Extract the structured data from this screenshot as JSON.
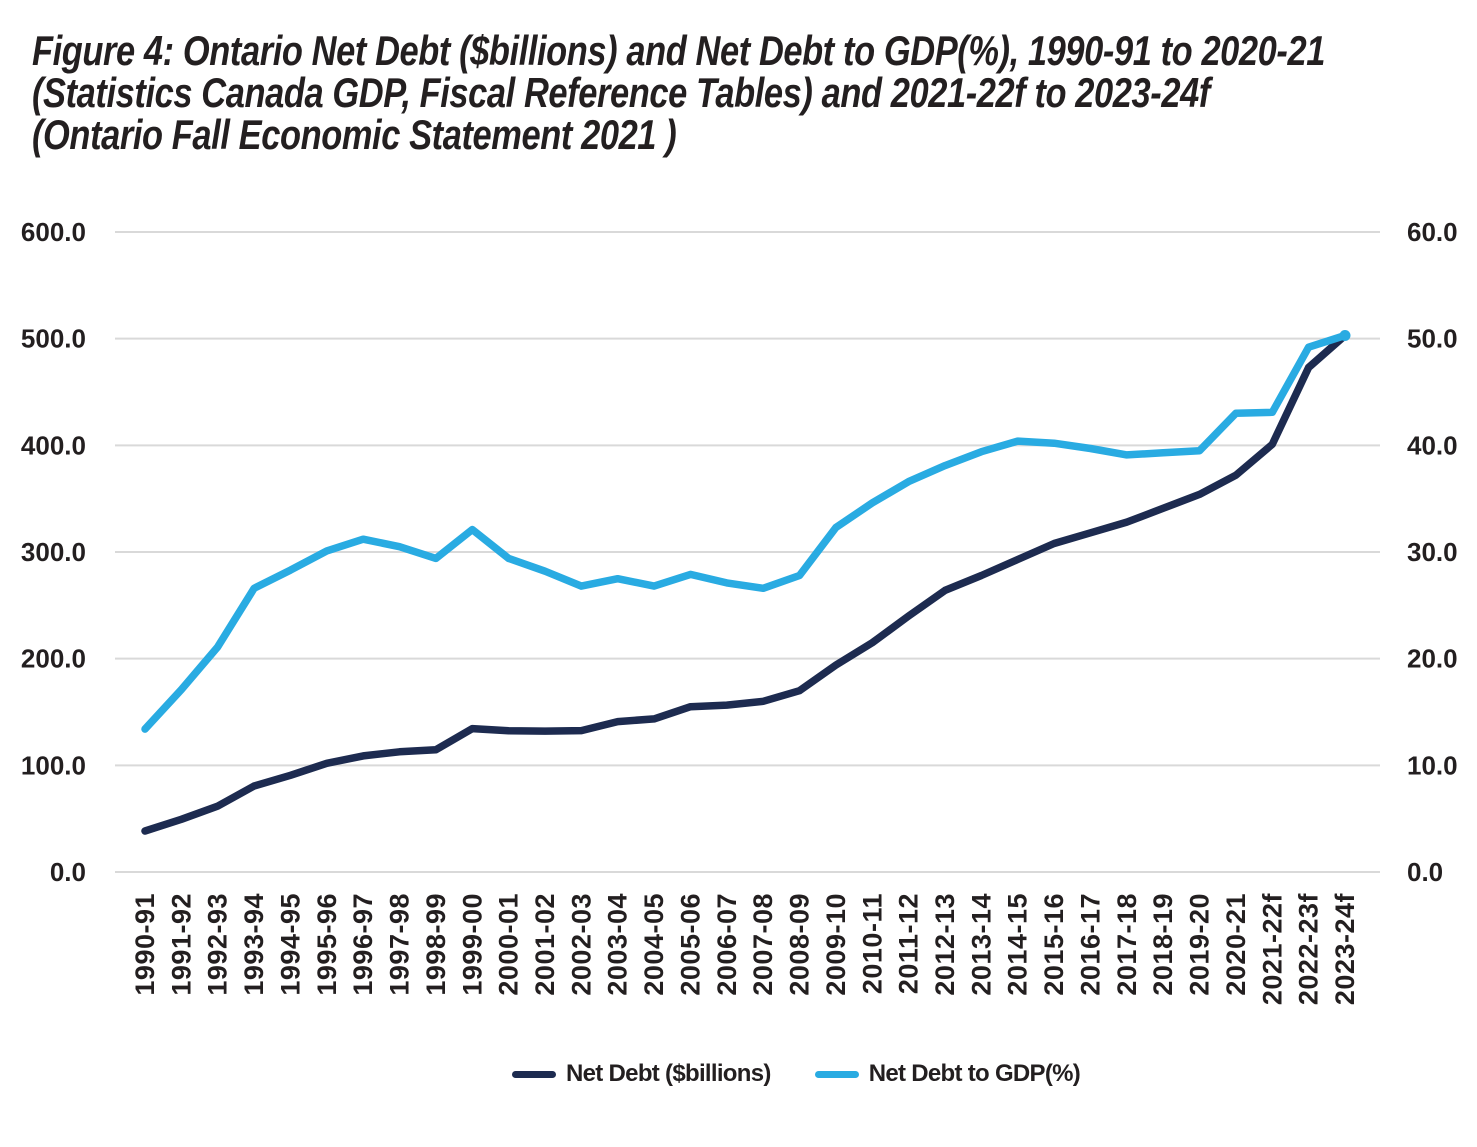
{
  "title": {
    "line1": "Figure 4: Ontario Net Debt ($billions) and Net Debt to GDP(%), 1990-91 to 2020-21",
    "line2": "(Statistics Canada GDP, Fiscal Reference Tables) and 2021-22f to 2023-24f",
    "line3": "(Ontario Fall Economic Statement 2021 )"
  },
  "chart_data": {
    "type": "line",
    "categories": [
      "1990-91",
      "1991-92",
      "1992-93",
      "1993-94",
      "1994-95",
      "1995-96",
      "1996-97",
      "1997-98",
      "1998-99",
      "1999-00",
      "2000-01",
      "2001-02",
      "2002-03",
      "2003-04",
      "2004-05",
      "2005-06",
      "2006-07",
      "2007-08",
      "2008-09",
      "2009-10",
      "2010-11",
      "2011-12",
      "2012-13",
      "2013-14",
      "2014-15",
      "2015-16",
      "2016-17",
      "2017-18",
      "2018-19",
      "2019-20",
      "2020-21",
      "2021-22f",
      "2022-23f",
      "2023-24f"
    ],
    "series": [
      {
        "name": "Net Debt ($billions)",
        "axis": "left",
        "color": "#1d2b50",
        "values": [
          38.4,
          49.4,
          61.8,
          80.6,
          90.7,
          101.9,
          108.8,
          112.7,
          114.7,
          134.4,
          132.5,
          132.1,
          132.6,
          141.0,
          143.5,
          155.0,
          156.5,
          160.0,
          170.0,
          194.0,
          215.0,
          240.0,
          264.0,
          278.0,
          293.0,
          308.0,
          318.0,
          328.0,
          341.0,
          354.0,
          372.0,
          401.0,
          473.0,
          503.0
        ]
      },
      {
        "name": "Net Debt to GDP(%)",
        "axis": "right",
        "color": "#29abe2",
        "values": [
          13.4,
          17.1,
          21.1,
          26.6,
          28.3,
          30.1,
          31.2,
          30.5,
          29.4,
          32.1,
          29.4,
          28.2,
          26.8,
          27.5,
          26.8,
          27.9,
          27.1,
          26.6,
          27.8,
          32.3,
          34.6,
          36.6,
          38.1,
          39.4,
          40.4,
          40.2,
          39.7,
          39.1,
          39.3,
          39.5,
          43.0,
          43.1,
          49.2,
          50.3
        ]
      }
    ],
    "left_axis": {
      "min": 0,
      "max": 600,
      "ticks": [
        "0.0",
        "100.0",
        "200.0",
        "300.0",
        "400.0",
        "500.0",
        "600.0"
      ]
    },
    "right_axis": {
      "min": 0,
      "max": 60,
      "ticks": [
        "0.0",
        "10.0",
        "20.0",
        "30.0",
        "40.0",
        "50.0",
        "60.0"
      ]
    },
    "grid": "horizontal",
    "legend_position": "bottom"
  },
  "colors": {
    "net_debt_line": "#1d2b50",
    "gdp_line": "#29abe2",
    "gridline": "#d9d9d9",
    "text": "#231f20",
    "background": "#ffffff"
  }
}
